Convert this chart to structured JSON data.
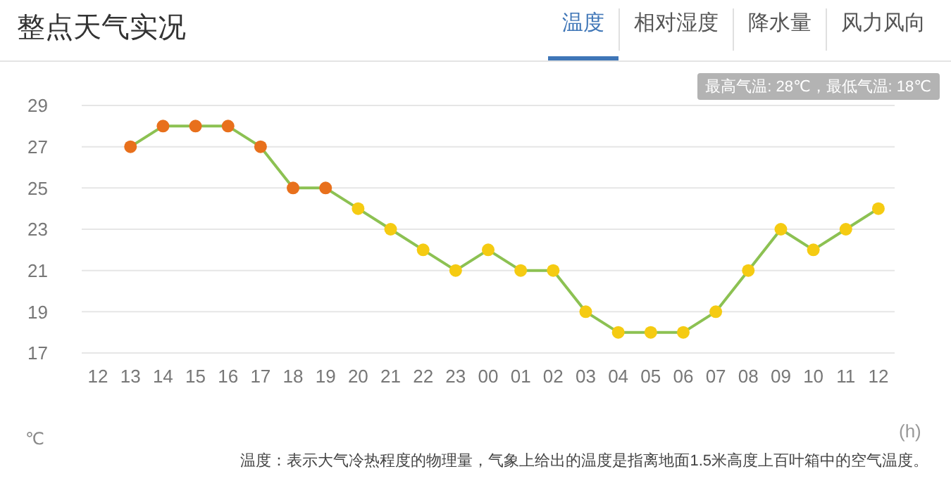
{
  "chart_data": {
    "type": "line",
    "title": "整点天气实况",
    "xlabel": "(h)",
    "ylabel": "℃",
    "annotations": [
      "温度",
      "相对湿度",
      "降水量",
      "风力风向",
      "最高气温: 28℃，最低气温: 18℃",
      "温度：表示大气冷热程度的物理量，气象上给出的温度是指离地面1.5米高度上百叶箱中的空气温度。"
    ],
    "categories": [
      "12",
      "13",
      "14",
      "15",
      "16",
      "17",
      "18",
      "19",
      "20",
      "21",
      "22",
      "23",
      "00",
      "01",
      "02",
      "03",
      "04",
      "05",
      "06",
      "07",
      "08",
      "09",
      "10",
      "11",
      "12"
    ],
    "series": [
      {
        "color": "#8cc152",
        "values": [
          null,
          27,
          28,
          28,
          28,
          27,
          25,
          25,
          24,
          23,
          22,
          21,
          22,
          21,
          21,
          19,
          18,
          18,
          18,
          19,
          21,
          23,
          22,
          23,
          24
        ],
        "colors": [
          null,
          "#e8701c",
          "#e8701c",
          "#e8701c",
          "#e8701c",
          "#e8701c",
          "#e8701c",
          "#e8701c",
          "#f5cb12",
          "#f5cb12",
          "#f5cb12",
          "#f5cb12",
          "#f5cb12",
          "#f5cb12",
          "#f5cb12",
          "#f5cb12",
          "#f5cb12",
          "#f5cb12",
          "#f5cb12",
          "#f5cb12",
          "#f5cb12",
          "#f5cb12",
          "#f5cb12",
          "#f5cb12",
          "#f5cb12"
        ]
      }
    ],
    "ylim": [
      17,
      29
    ],
    "yticks": [
      17,
      19,
      21,
      23,
      25,
      27,
      29
    ],
    "grid": "y",
    "marker": "circle",
    "line_style": "solid"
  }
}
